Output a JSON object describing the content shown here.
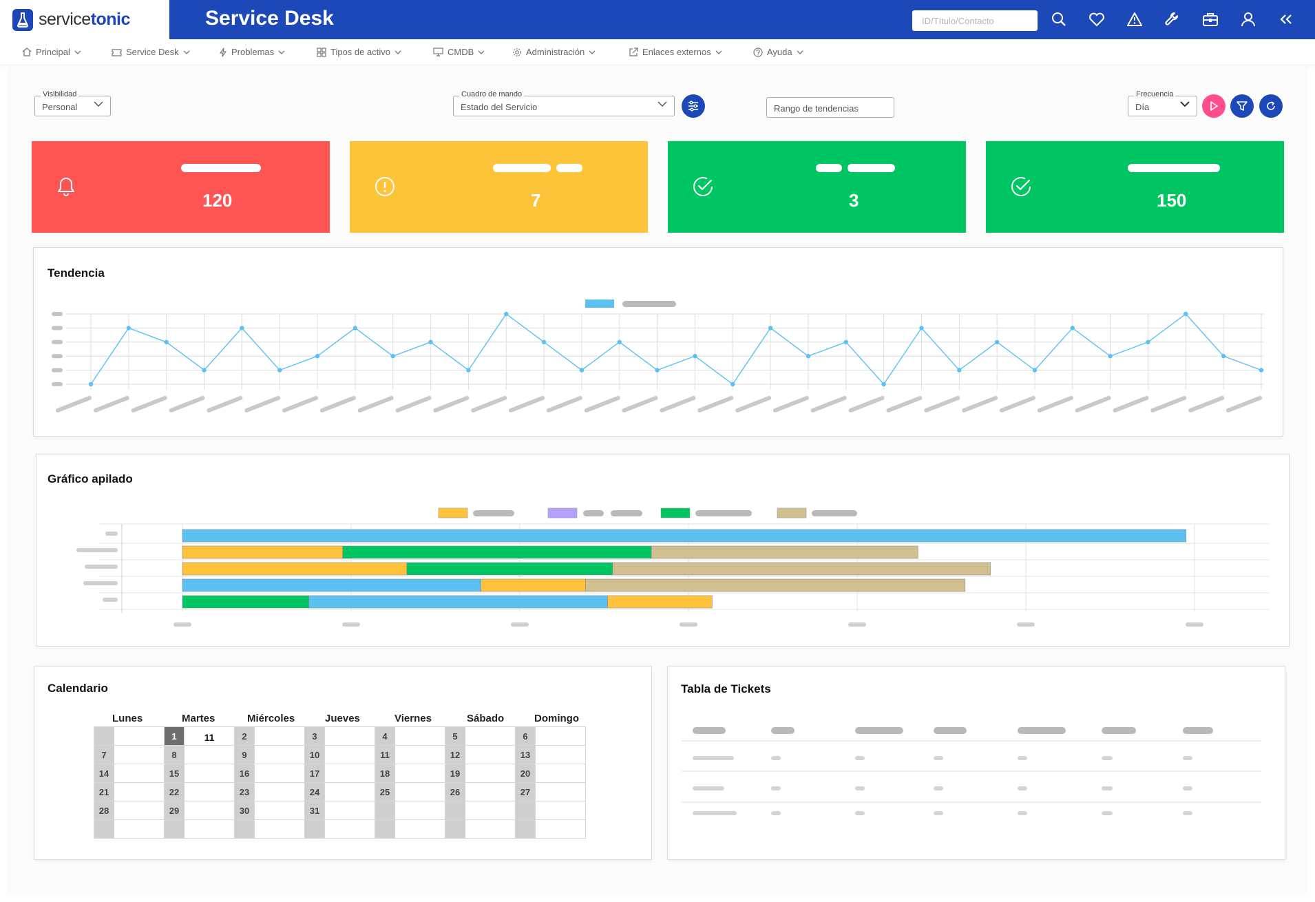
{
  "header": {
    "logo_text_a": "service",
    "logo_text_b": "tonic",
    "title": "Service Desk",
    "search_placeholder": "ID/Título/Contacto",
    "icons": [
      "search-icon",
      "heart-icon",
      "warning-icon",
      "wrench-icon",
      "briefcase-icon",
      "user-icon",
      "collapse-icon"
    ]
  },
  "menu": [
    {
      "label": "Principal",
      "icon": "home-icon"
    },
    {
      "label": "Service Desk",
      "icon": "ticket-icon"
    },
    {
      "label": "Problemas",
      "icon": "lightning-icon"
    },
    {
      "label": "Tipos de activo",
      "icon": "grid-icon"
    },
    {
      "label": "CMDB",
      "icon": "monitor-icon"
    },
    {
      "label": "Administración",
      "icon": "gear-icon"
    },
    {
      "label": "Enlaces externos",
      "icon": "external-link-icon"
    },
    {
      "label": "Ayuda",
      "icon": "help-icon"
    }
  ],
  "filters": {
    "visibility_label": "Visibilidad",
    "visibility_value": "Personal",
    "dashboard_label": "Cuadro de mando",
    "dashboard_value": "Estado del Servicio",
    "trend_range": "Rango de tendencias",
    "frequency_label": "Frecuencia",
    "frequency_value": "Día"
  },
  "kpis": [
    {
      "value": "120",
      "icon": "bell-icon",
      "color": "#ff5454"
    },
    {
      "value": "7",
      "icon": "alert-circle-icon",
      "color": "#fdc43a"
    },
    {
      "value": "3",
      "icon": "check-circle-icon",
      "color": "#00c563"
    },
    {
      "value": "150",
      "icon": "check-circle-icon",
      "color": "#00c563"
    }
  ],
  "colors": {
    "blue": "#1c48b8",
    "line": "#5bc1f2",
    "yellow": "#fec33b",
    "green": "#00c563",
    "tan": "#d1bf90",
    "purple": "#b3a1ff",
    "pink": "#ff4d8d"
  },
  "trend": {
    "title": "Tendencia"
  },
  "stacked": {
    "title": "Gráfico apilado"
  },
  "calendar": {
    "title": "Calendario",
    "days": [
      "Lunes",
      "Martes",
      "Miércoles",
      "Jueves",
      "Viernes",
      "Sábado",
      "Domingo"
    ],
    "rows": [
      [
        {
          "d": "",
          "e": ""
        },
        {
          "d": "1",
          "e": "11",
          "sel": true
        },
        {
          "d": "2",
          "e": ""
        },
        {
          "d": "3",
          "e": ""
        },
        {
          "d": "4",
          "e": ""
        },
        {
          "d": "5",
          "e": ""
        },
        {
          "d": "6",
          "e": ""
        }
      ],
      [
        {
          "d": "7",
          "e": ""
        },
        {
          "d": "8",
          "e": ""
        },
        {
          "d": "9",
          "e": ""
        },
        {
          "d": "10",
          "e": ""
        },
        {
          "d": "11",
          "e": ""
        },
        {
          "d": "12",
          "e": ""
        },
        {
          "d": "13",
          "e": ""
        }
      ],
      [
        {
          "d": "14",
          "e": ""
        },
        {
          "d": "15",
          "e": ""
        },
        {
          "d": "16",
          "e": ""
        },
        {
          "d": "17",
          "e": ""
        },
        {
          "d": "18",
          "e": ""
        },
        {
          "d": "19",
          "e": ""
        },
        {
          "d": "20",
          "e": ""
        }
      ],
      [
        {
          "d": "21",
          "e": ""
        },
        {
          "d": "22",
          "e": ""
        },
        {
          "d": "23",
          "e": ""
        },
        {
          "d": "24",
          "e": ""
        },
        {
          "d": "25",
          "e": ""
        },
        {
          "d": "26",
          "e": ""
        },
        {
          "d": "27",
          "e": ""
        }
      ],
      [
        {
          "d": "28",
          "e": ""
        },
        {
          "d": "29",
          "e": ""
        },
        {
          "d": "30",
          "e": ""
        },
        {
          "d": "31",
          "e": ""
        },
        {
          "d": "",
          "e": ""
        },
        {
          "d": "",
          "e": ""
        },
        {
          "d": "",
          "e": ""
        }
      ],
      [
        {
          "d": "",
          "e": ""
        },
        {
          "d": "",
          "e": ""
        },
        {
          "d": "",
          "e": ""
        },
        {
          "d": "",
          "e": ""
        },
        {
          "d": "",
          "e": ""
        },
        {
          "d": "",
          "e": ""
        },
        {
          "d": "",
          "e": ""
        }
      ]
    ]
  },
  "tickets": {
    "title": "Tabla de Tickets"
  },
  "chart_data": [
    {
      "type": "line",
      "title": "Tendencia",
      "values": [
        0,
        4,
        3,
        1,
        4,
        1,
        2,
        4,
        2,
        3,
        1,
        5,
        3,
        1,
        3,
        1,
        2,
        0,
        4,
        2,
        3,
        0,
        4,
        1,
        3,
        1,
        4,
        2,
        3,
        5,
        2,
        1
      ],
      "ylim": [
        0,
        5
      ],
      "grid": true,
      "legend": "top-center"
    },
    {
      "type": "bar",
      "title": "Gráfico apilado",
      "orientation": "horizontal",
      "stacked": true,
      "xlim": [
        0,
        6
      ],
      "grid": true,
      "legend": "top-center",
      "rows": [
        [
          {
            "color": "#5bc1f2",
            "value": 5.95
          }
        ],
        [
          {
            "color": "#fec33b",
            "value": 0.95
          },
          {
            "color": "#00c563",
            "value": 1.83
          },
          {
            "color": "#d1bf90",
            "value": 1.58
          }
        ],
        [
          {
            "color": "#fec33b",
            "value": 1.33
          },
          {
            "color": "#00c563",
            "value": 1.22
          },
          {
            "color": "#d1bf90",
            "value": 2.24
          }
        ],
        [
          {
            "color": "#5bc1f2",
            "value": 1.77
          },
          {
            "color": "#fec33b",
            "value": 0.62
          },
          {
            "color": "#d1bf90",
            "value": 2.25
          }
        ],
        [
          {
            "color": "#00c563",
            "value": 0.75
          },
          {
            "color": "#5bc1f2",
            "value": 1.77
          },
          {
            "color": "#fec33b",
            "value": 0.62
          }
        ]
      ]
    }
  ]
}
